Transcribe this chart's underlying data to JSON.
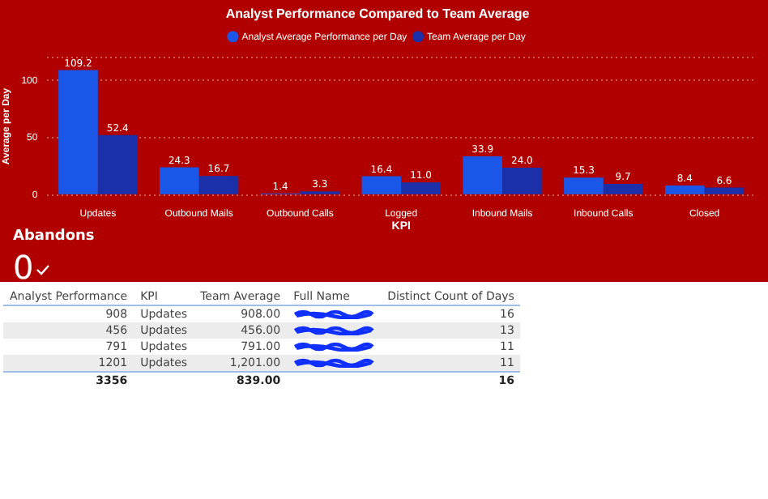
{
  "chart_data": [
    {
      "type": "bar",
      "title": "Analyst Performance Compared to Team Average",
      "xlabel": "KPI",
      "ylabel": "Average per Day",
      "categories": [
        "Updates",
        "Outbound Mails",
        "Outbound Calls",
        "Logged",
        "Inbound Mails",
        "Inbound Calls",
        "Closed"
      ],
      "series": [
        {
          "name": "Analyst Average Performance per Day",
          "color": "#1a56e8",
          "values": [
            109.2,
            24.3,
            1.4,
            16.4,
            33.9,
            15.3,
            8.4
          ],
          "value_labels": [
            "109.2",
            "24.3",
            "1.4",
            "16.4",
            "33.9",
            "15.3",
            "8.4"
          ]
        },
        {
          "name": "Team Average per Day",
          "color": "#1b2fa8",
          "values": [
            52.4,
            16.7,
            3.3,
            11.0,
            24.0,
            9.7,
            6.6
          ],
          "value_labels": [
            "52.4",
            "16.7",
            "3.3",
            "11.0",
            "24.0",
            "9.7",
            "6.6"
          ]
        }
      ],
      "ylim": [
        0,
        120
      ],
      "yticks": [
        0,
        50,
        100,
        {
          "value": 120,
          "label": null
        }
      ],
      "grid": "y",
      "legend": "top"
    },
    {
      "type": "other",
      "title": "Abandons",
      "annotations": [
        "0"
      ]
    },
    {
      "type": "other",
      "categories": [
        "Analyst Performance",
        "KPI",
        "Team Average",
        "Full Name",
        "Distinct Count of Days"
      ],
      "annotations": [
        "908",
        "Updates",
        "908.00",
        null,
        "16",
        "456",
        "Updates",
        "456.00",
        null,
        "13",
        "791",
        "Updates",
        "791.00",
        null,
        "11",
        "1201",
        "Updates",
        "1,201.00",
        null,
        "11",
        "3356",
        null,
        "839.00",
        null,
        "16"
      ]
    }
  ]
}
